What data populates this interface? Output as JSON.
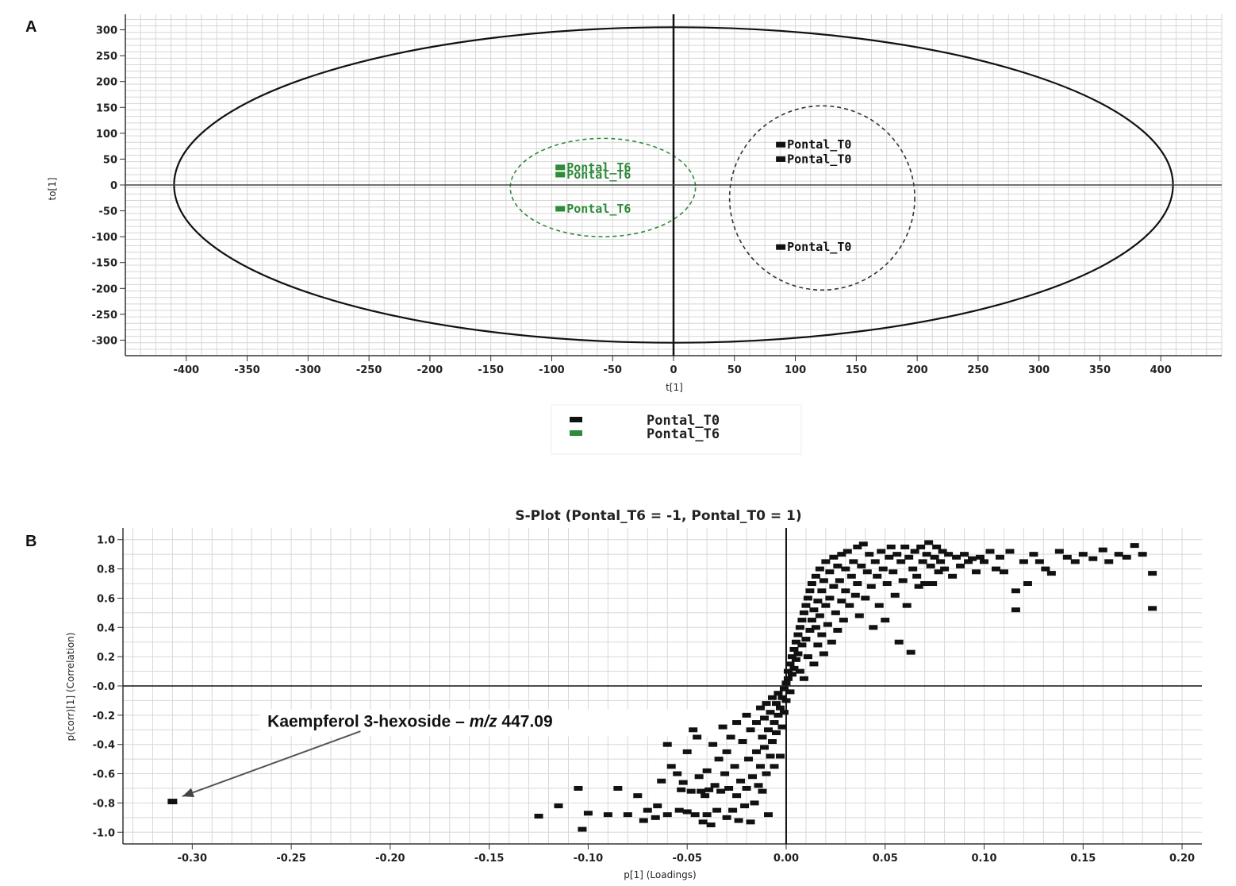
{
  "chart_data": [
    {
      "panel": "A",
      "type": "scatter",
      "title": "",
      "xlabel": "t[1]",
      "ylabel": "to[1]",
      "xlim": [
        -450,
        450
      ],
      "ylim": [
        -330,
        330
      ],
      "xticks": [
        -400,
        -350,
        -300,
        -250,
        -200,
        -150,
        -100,
        -50,
        0,
        50,
        100,
        150,
        200,
        250,
        300,
        350,
        400
      ],
      "yticks": [
        -300,
        -250,
        -200,
        -150,
        -100,
        -50,
        0,
        50,
        100,
        150,
        200,
        250,
        300
      ],
      "grid": true,
      "colors": {
        "Pontal_T0": "#111111",
        "Pontal_T6": "#2e8b3a"
      },
      "series": [
        {
          "name": "Pontal_T0",
          "points": [
            {
              "x": 88,
              "y": 78,
              "label": "Pontal_T0"
            },
            {
              "x": 88,
              "y": 50,
              "label": "Pontal_T0"
            },
            {
              "x": 88,
              "y": -120,
              "label": "Pontal_T0"
            }
          ]
        },
        {
          "name": "Pontal_T6",
          "points": [
            {
              "x": -93,
              "y": 34,
              "label": "Pontal_T6"
            },
            {
              "x": -93,
              "y": 20,
              "label": "Pontal_T6"
            },
            {
              "x": -93,
              "y": -46,
              "label": "Pontal_T6"
            }
          ]
        }
      ],
      "ellipses": [
        {
          "role": "Hotelling T2",
          "cx": 0,
          "cy": 0,
          "rx": 410,
          "ry": 305,
          "style": "solid",
          "color": "#111111"
        },
        {
          "role": "Pontal_T6 group",
          "cx": -58,
          "cy": -5,
          "rx": 76,
          "ry": 95,
          "style": "dashed",
          "color": "#2e8b3a"
        },
        {
          "role": "Pontal_T0 group",
          "cx": 122,
          "cy": -25,
          "rx": 76,
          "ry": 178,
          "style": "dashed",
          "color": "#333333"
        }
      ],
      "legend": {
        "position": "bottom-center",
        "items": [
          "Pontal_T0",
          "Pontal_T6"
        ]
      }
    },
    {
      "panel": "B",
      "type": "scatter",
      "title": "S-Plot (Pontal_T6 = -1, Pontal_T0 = 1)",
      "xlabel": "p[1] (Loadings)",
      "ylabel": "p(corr)[1] (Correlation)",
      "xlim": [
        -0.335,
        0.21
      ],
      "ylim": [
        -1.08,
        1.08
      ],
      "xticks": [
        -0.3,
        -0.25,
        -0.2,
        -0.15,
        -0.1,
        -0.05,
        0.0,
        0.05,
        0.1,
        0.15,
        0.2
      ],
      "xtick_labels": [
        "-0.30",
        "-0.25",
        "-0.20",
        "-0.15",
        "-0.10",
        "-0.05",
        "0.00",
        "0.05",
        "0.10",
        "0.15",
        "0.20"
      ],
      "yticks": [
        -1.0,
        -0.8,
        -0.6,
        -0.4,
        -0.2,
        0.0,
        0.2,
        0.4,
        0.6,
        0.8,
        1.0
      ],
      "ytick_labels": [
        "-1.0",
        "-0.8",
        "-0.6",
        "-0.4",
        "-0.2",
        "-0.0",
        "0.2",
        "0.4",
        "0.6",
        "0.8",
        "1.0"
      ],
      "grid": true,
      "point_color": "#111111",
      "highlight": {
        "x": -0.31,
        "y": -0.79
      },
      "annotation": {
        "label_prefix": "Kaempferol 3-hexoside – ",
        "label_italic": "m/z",
        "label_suffix": " 447.09",
        "text_anchor": [
          -0.262,
          -0.28
        ],
        "arrow_from": [
          -0.215,
          -0.31
        ],
        "arrow_to": [
          -0.305,
          -0.755
        ]
      },
      "points": [
        [
          -0.125,
          -0.89
        ],
        [
          -0.115,
          -0.82
        ],
        [
          -0.105,
          -0.7
        ],
        [
          -0.103,
          -0.98
        ],
        [
          -0.1,
          -0.87
        ],
        [
          -0.09,
          -0.88
        ],
        [
          -0.085,
          -0.7
        ],
        [
          -0.08,
          -0.88
        ],
        [
          -0.075,
          -0.75
        ],
        [
          -0.072,
          -0.92
        ],
        [
          -0.07,
          -0.85
        ],
        [
          -0.066,
          -0.9
        ],
        [
          -0.065,
          -0.82
        ],
        [
          -0.063,
          -0.65
        ],
        [
          -0.06,
          -0.4
        ],
        [
          -0.06,
          -0.88
        ],
        [
          -0.058,
          -0.55
        ],
        [
          -0.055,
          -0.6
        ],
        [
          -0.054,
          -0.85
        ],
        [
          -0.053,
          -0.71
        ],
        [
          -0.052,
          -0.66
        ],
        [
          -0.05,
          -0.45
        ],
        [
          -0.05,
          -0.86
        ],
        [
          -0.048,
          -0.72
        ],
        [
          -0.047,
          -0.3
        ],
        [
          -0.046,
          -0.88
        ],
        [
          -0.045,
          -0.35
        ],
        [
          -0.044,
          -0.62
        ],
        [
          -0.043,
          -0.72
        ],
        [
          -0.042,
          -0.93
        ],
        [
          -0.041,
          -0.75
        ],
        [
          -0.04,
          -0.58
        ],
        [
          -0.04,
          -0.88
        ],
        [
          -0.039,
          -0.71
        ],
        [
          -0.038,
          -0.95
        ],
        [
          -0.037,
          -0.4
        ],
        [
          -0.036,
          -0.68
        ],
        [
          -0.035,
          -0.85
        ],
        [
          -0.034,
          -0.5
        ],
        [
          -0.033,
          -0.72
        ],
        [
          -0.032,
          -0.28
        ],
        [
          -0.031,
          -0.6
        ],
        [
          -0.03,
          -0.9
        ],
        [
          -0.03,
          -0.45
        ],
        [
          -0.029,
          -0.7
        ],
        [
          -0.028,
          -0.35
        ],
        [
          -0.027,
          -0.85
        ],
        [
          -0.026,
          -0.55
        ],
        [
          -0.025,
          -0.25
        ],
        [
          -0.025,
          -0.75
        ],
        [
          -0.024,
          -0.92
        ],
        [
          -0.023,
          -0.65
        ],
        [
          -0.022,
          -0.38
        ],
        [
          -0.021,
          -0.82
        ],
        [
          -0.02,
          -0.2
        ],
        [
          -0.02,
          -0.7
        ],
        [
          -0.019,
          -0.5
        ],
        [
          -0.018,
          -0.93
        ],
        [
          -0.018,
          -0.3
        ],
        [
          -0.017,
          -0.62
        ],
        [
          -0.016,
          -0.8
        ],
        [
          -0.015,
          -0.25
        ],
        [
          -0.015,
          -0.45
        ],
        [
          -0.014,
          -0.68
        ],
        [
          -0.013,
          -0.15
        ],
        [
          -0.013,
          -0.55
        ],
        [
          -0.012,
          -0.35
        ],
        [
          -0.012,
          -0.72
        ],
        [
          -0.011,
          -0.22
        ],
        [
          -0.011,
          -0.42
        ],
        [
          -0.01,
          -0.12
        ],
        [
          -0.01,
          -0.6
        ],
        [
          -0.009,
          -0.3
        ],
        [
          -0.009,
          -0.88
        ],
        [
          -0.008,
          -0.18
        ],
        [
          -0.008,
          -0.48
        ],
        [
          -0.007,
          -0.08
        ],
        [
          -0.007,
          -0.38
        ],
        [
          -0.006,
          -0.25
        ],
        [
          -0.006,
          -0.55
        ],
        [
          -0.005,
          -0.12
        ],
        [
          -0.005,
          -0.32
        ],
        [
          -0.004,
          -0.2
        ],
        [
          -0.004,
          -0.05
        ],
        [
          -0.003,
          -0.15
        ],
        [
          -0.003,
          -0.48
        ],
        [
          -0.002,
          -0.08
        ],
        [
          -0.002,
          -0.28
        ],
        [
          -0.001,
          -0.02
        ],
        [
          -0.001,
          -0.18
        ],
        [
          0.0,
          0.02
        ],
        [
          0.0,
          -0.1
        ],
        [
          0.001,
          0.05
        ],
        [
          0.001,
          0.1
        ],
        [
          0.002,
          0.15
        ],
        [
          0.002,
          -0.04
        ],
        [
          0.003,
          0.2
        ],
        [
          0.003,
          0.08
        ],
        [
          0.004,
          0.25
        ],
        [
          0.004,
          0.12
        ],
        [
          0.005,
          0.3
        ],
        [
          0.005,
          0.18
        ],
        [
          0.006,
          0.35
        ],
        [
          0.006,
          0.22
        ],
        [
          0.007,
          0.4
        ],
        [
          0.007,
          0.1
        ],
        [
          0.008,
          0.45
        ],
        [
          0.008,
          0.28
        ],
        [
          0.009,
          0.5
        ],
        [
          0.009,
          0.05
        ],
        [
          0.01,
          0.55
        ],
        [
          0.01,
          0.32
        ],
        [
          0.011,
          0.6
        ],
        [
          0.011,
          0.2
        ],
        [
          0.012,
          0.65
        ],
        [
          0.012,
          0.38
        ],
        [
          0.013,
          0.7
        ],
        [
          0.013,
          0.45
        ],
        [
          0.014,
          0.52
        ],
        [
          0.014,
          0.15
        ],
        [
          0.015,
          0.75
        ],
        [
          0.015,
          0.4
        ],
        [
          0.016,
          0.58
        ],
        [
          0.016,
          0.28
        ],
        [
          0.017,
          0.8
        ],
        [
          0.017,
          0.48
        ],
        [
          0.018,
          0.65
        ],
        [
          0.018,
          0.35
        ],
        [
          0.019,
          0.72
        ],
        [
          0.019,
          0.22
        ],
        [
          0.02,
          0.85
        ],
        [
          0.02,
          0.55
        ],
        [
          0.021,
          0.42
        ],
        [
          0.022,
          0.78
        ],
        [
          0.022,
          0.6
        ],
        [
          0.023,
          0.3
        ],
        [
          0.024,
          0.88
        ],
        [
          0.024,
          0.68
        ],
        [
          0.025,
          0.5
        ],
        [
          0.026,
          0.82
        ],
        [
          0.026,
          0.38
        ],
        [
          0.027,
          0.72
        ],
        [
          0.028,
          0.9
        ],
        [
          0.028,
          0.58
        ],
        [
          0.029,
          0.45
        ],
        [
          0.03,
          0.8
        ],
        [
          0.03,
          0.65
        ],
        [
          0.031,
          0.92
        ],
        [
          0.032,
          0.55
        ],
        [
          0.033,
          0.75
        ],
        [
          0.034,
          0.85
        ],
        [
          0.035,
          0.62
        ],
        [
          0.036,
          0.95
        ],
        [
          0.036,
          0.7
        ],
        [
          0.037,
          0.48
        ],
        [
          0.038,
          0.82
        ],
        [
          0.039,
          0.97
        ],
        [
          0.04,
          0.6
        ],
        [
          0.041,
          0.78
        ],
        [
          0.042,
          0.9
        ],
        [
          0.043,
          0.68
        ],
        [
          0.044,
          0.4
        ],
        [
          0.045,
          0.85
        ],
        [
          0.046,
          0.75
        ],
        [
          0.047,
          0.55
        ],
        [
          0.048,
          0.92
        ],
        [
          0.049,
          0.8
        ],
        [
          0.05,
          0.45
        ],
        [
          0.051,
          0.7
        ],
        [
          0.052,
          0.88
        ],
        [
          0.053,
          0.95
        ],
        [
          0.054,
          0.78
        ],
        [
          0.055,
          0.62
        ],
        [
          0.056,
          0.9
        ],
        [
          0.057,
          0.3
        ],
        [
          0.058,
          0.85
        ],
        [
          0.059,
          0.72
        ],
        [
          0.06,
          0.95
        ],
        [
          0.061,
          0.55
        ],
        [
          0.062,
          0.88
        ],
        [
          0.063,
          0.23
        ],
        [
          0.064,
          0.8
        ],
        [
          0.065,
          0.92
        ],
        [
          0.066,
          0.75
        ],
        [
          0.067,
          0.68
        ],
        [
          0.068,
          0.95
        ],
        [
          0.069,
          0.85
        ],
        [
          0.07,
          0.7
        ],
        [
          0.071,
          0.9
        ],
        [
          0.072,
          0.98
        ],
        [
          0.073,
          0.82
        ],
        [
          0.074,
          0.7
        ],
        [
          0.075,
          0.88
        ],
        [
          0.076,
          0.95
        ],
        [
          0.077,
          0.78
        ],
        [
          0.078,
          0.85
        ],
        [
          0.079,
          0.92
        ],
        [
          0.08,
          0.8
        ],
        [
          0.082,
          0.9
        ],
        [
          0.084,
          0.75
        ],
        [
          0.086,
          0.88
        ],
        [
          0.088,
          0.82
        ],
        [
          0.09,
          0.9
        ],
        [
          0.092,
          0.85
        ],
        [
          0.094,
          0.87
        ],
        [
          0.096,
          0.78
        ],
        [
          0.098,
          0.88
        ],
        [
          0.1,
          0.85
        ],
        [
          0.103,
          0.92
        ],
        [
          0.106,
          0.8
        ],
        [
          0.108,
          0.88
        ],
        [
          0.11,
          0.78
        ],
        [
          0.113,
          0.92
        ],
        [
          0.116,
          0.65
        ],
        [
          0.116,
          0.52
        ],
        [
          0.12,
          0.85
        ],
        [
          0.122,
          0.7
        ],
        [
          0.125,
          0.9
        ],
        [
          0.128,
          0.85
        ],
        [
          0.131,
          0.8
        ],
        [
          0.134,
          0.77
        ],
        [
          0.138,
          0.92
        ],
        [
          0.142,
          0.88
        ],
        [
          0.146,
          0.85
        ],
        [
          0.15,
          0.9
        ],
        [
          0.155,
          0.87
        ],
        [
          0.16,
          0.93
        ],
        [
          0.163,
          0.85
        ],
        [
          0.168,
          0.9
        ],
        [
          0.172,
          0.88
        ],
        [
          0.176,
          0.96
        ],
        [
          0.18,
          0.9
        ],
        [
          0.185,
          0.77
        ],
        [
          0.185,
          0.53
        ]
      ]
    }
  ]
}
